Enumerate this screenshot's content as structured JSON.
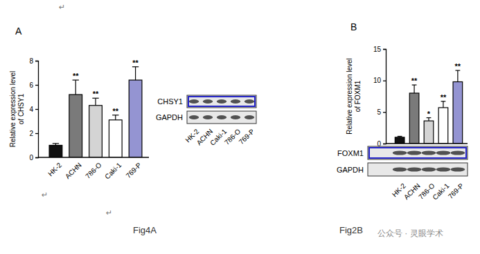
{
  "chart_data": [
    {
      "type": "bar",
      "panel": "A",
      "caption": "Fig4A",
      "y_label": [
        "Relative expression level",
        "of CHSY1"
      ],
      "categories": [
        "HK-2",
        "ACHN",
        "786-O",
        "Caki-1",
        "769-P"
      ],
      "values": [
        1.0,
        5.2,
        4.3,
        3.1,
        6.4
      ],
      "errors": [
        0.15,
        1.2,
        0.6,
        0.4,
        1.1
      ],
      "significance": [
        null,
        "**",
        "**",
        "**",
        "**"
      ],
      "colors": [
        "#111111",
        "#7a7a7a",
        "#d4d4d4",
        "#ffffff",
        "#9494d2"
      ],
      "ylim": [
        0,
        8
      ],
      "yticks": [
        0,
        2,
        4,
        6,
        8
      ],
      "blot": {
        "rows": [
          "CHSY1",
          "GAPDH"
        ],
        "lanes": [
          "HK-2",
          "ACHN",
          "Caki-1",
          "786-O",
          "769-P"
        ]
      }
    },
    {
      "type": "bar",
      "panel": "B",
      "caption": "Fig2B",
      "y_label": [
        "Relative expression level",
        "of FOXM1"
      ],
      "categories": [
        "HK-2",
        "ACHN",
        "786-O",
        "Caki-1",
        "769-P"
      ],
      "values": [
        1.0,
        8.0,
        3.6,
        5.7,
        9.8
      ],
      "errors": [
        0.15,
        1.3,
        0.5,
        1.0,
        1.8
      ],
      "significance": [
        null,
        "**",
        "*",
        "**",
        "**"
      ],
      "colors": [
        "#111111",
        "#7a7a7a",
        "#d4d4d4",
        "#ffffff",
        "#9494d2"
      ],
      "ylim": [
        0,
        15
      ],
      "yticks": [
        0,
        5,
        10,
        15
      ],
      "blot": {
        "rows": [
          "FOXM1",
          "GAPDH"
        ]
      }
    }
  ],
  "watermark": "公众号 · 灵眼学术",
  "paragraph_marks": [
    "↵",
    "↵",
    "↵"
  ]
}
